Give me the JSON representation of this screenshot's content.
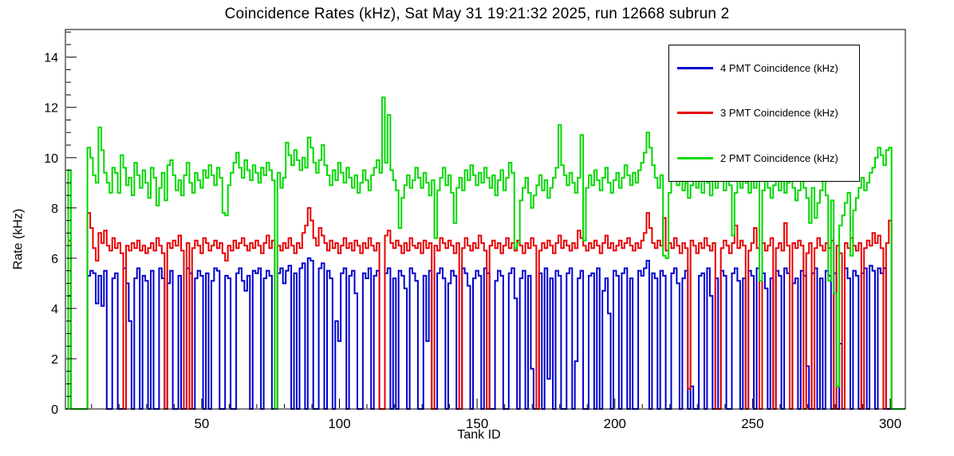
{
  "header": {
    "title": "Coincidence Rates (kHz), Sat May 31 19:21:32 2025, run 12668 subrun 2"
  },
  "chart_data": {
    "type": "step-histogram",
    "title": "Coincidence Rates (kHz), Sat May 31 19:21:32 2025, run 12668 subrun 2",
    "xlabel": "Tank ID",
    "ylabel": "Rate (kHz)",
    "xlim": [
      0.5,
      305.5
    ],
    "ylim": [
      0,
      15.1
    ],
    "x_major_ticks": [
      50,
      100,
      150,
      200,
      250,
      300
    ],
    "x_minor_step": 10,
    "y_major_ticks": [
      0,
      2,
      4,
      6,
      8,
      10,
      12,
      14
    ],
    "y_minor_step": 0.5,
    "grid": false,
    "frame_color": "#000000",
    "background": "#ffffff",
    "legend": {
      "position": "top-right",
      "border": "#000000"
    },
    "bin_start_tank_id": 1,
    "series": [
      {
        "key": "4pmt",
        "name": "4 PMT Coincidence (kHz)",
        "color": "#0000cc",
        "values": [
          0,
          4.5,
          0,
          0,
          0,
          0,
          0,
          0,
          5.3,
          5.5,
          5.4,
          4.2,
          5.3,
          4.1,
          5.5,
          0,
          0,
          5.2,
          5.4,
          0,
          0,
          5.6,
          5.0,
          3.5,
          0,
          5.2,
          5.6,
          0,
          5.3,
          5.1,
          0,
          5.5,
          0,
          0,
          5.6,
          5.2,
          0,
          5.0,
          5.5,
          0,
          0,
          5.3,
          0,
          0,
          5.6,
          5.4,
          0,
          5.2,
          5.5,
          5.3,
          0,
          5.4,
          0,
          5.1,
          5.6,
          5.5,
          0,
          0,
          5.3,
          5.2,
          0,
          0,
          5.4,
          5.6,
          5.1,
          4.7,
          5.3,
          0,
          5.5,
          5.4,
          5.6,
          0,
          5.2,
          5.5,
          5.3,
          0,
          0,
          5.4,
          5.6,
          5.0,
          5.5,
          5.7,
          0,
          5.4,
          0,
          5.6,
          5.8,
          0,
          6.0,
          5.9,
          0,
          0,
          5.6,
          5.8,
          0,
          5.5,
          5.2,
          0,
          3.5,
          2.7,
          5.4,
          5.6,
          0,
          5.3,
          5.5,
          4.6,
          0,
          0,
          5.4,
          5.2,
          5.6,
          0,
          5.3,
          5.5,
          0,
          0,
          5.4,
          5.6,
          0,
          5.2,
          0,
          5.5,
          5.3,
          4.8,
          0,
          5.6,
          5.4,
          5.1,
          0,
          0,
          5.3,
          2.7,
          5.5,
          0,
          0,
          5.4,
          5.6,
          5.2,
          0,
          5.0,
          5.5,
          5.3,
          0,
          0,
          5.6,
          5.4,
          4.9,
          0,
          5.2,
          5.5,
          5.3,
          0,
          5.6,
          5.4,
          0,
          0,
          5.1,
          5.5,
          5.3,
          0,
          0,
          5.4,
          5.6,
          4.4,
          0,
          5.2,
          5.5,
          0,
          5.3,
          1.6,
          0,
          0,
          5.4,
          0,
          5.6,
          1.2,
          5.2,
          0,
          5.5,
          5.3,
          0,
          0,
          5.4,
          5.6,
          0,
          1.9,
          5.2,
          5.5,
          0,
          0,
          5.3,
          5.4,
          0,
          5.6,
          0,
          4.7,
          5.2,
          3.8,
          0,
          5.5,
          5.3,
          0,
          5.4,
          5.6,
          0,
          5.2,
          0,
          0,
          5.5,
          5.3,
          5.6,
          5.9,
          0,
          5.4,
          5.2,
          0,
          5.5,
          5.3,
          0,
          0,
          5.4,
          5.6,
          5.0,
          0,
          5.2,
          5.5,
          0,
          0.9,
          0,
          0,
          5.3,
          5.4,
          0,
          5.6,
          4.5,
          0,
          5.2,
          0,
          5.5,
          5.3,
          0,
          0,
          5.4,
          5.6,
          5.1,
          0,
          5.2,
          0,
          5.5,
          5.3,
          0,
          5.6,
          0,
          5.4,
          4.8,
          0,
          5.2,
          0,
          5.5,
          5.3,
          0,
          5.6,
          5.4,
          0,
          5.0,
          5.2,
          0,
          5.5,
          5.3,
          1.7,
          0,
          5.4,
          5.6,
          0,
          5.2,
          0,
          5.5,
          5.3,
          0,
          5.4,
          0,
          2.6,
          0,
          5.6,
          5.2,
          0,
          5.5,
          5.3,
          0,
          5.4,
          5.6,
          0,
          5.7,
          5.5,
          0,
          5.6,
          5.4,
          5.6,
          0,
          0,
          0,
          0,
          0,
          0,
          0
        ]
      },
      {
        "key": "3pmt",
        "name": "3 PMT Coincidence (kHz)",
        "color": "#e60000",
        "values": [
          0,
          6.7,
          0,
          0,
          0,
          0,
          0,
          0,
          7.8,
          7.2,
          6.4,
          5.9,
          7.0,
          6.6,
          7.1,
          6.5,
          6.3,
          6.8,
          6.4,
          6.6,
          6.2,
          0,
          6.5,
          6.3,
          6.6,
          6.4,
          6.7,
          6.3,
          6.5,
          6.2,
          6.4,
          6.6,
          6.3,
          6.8,
          6.5,
          6.2,
          0,
          6.6,
          6.4,
          6.7,
          6.5,
          6.9,
          6.3,
          0,
          6.6,
          0,
          6.4,
          6.7,
          6.5,
          6.2,
          6.8,
          6.6,
          6.3,
          6.5,
          6.7,
          6.4,
          6.6,
          6.2,
          5.9,
          6.5,
          6.3,
          6.7,
          6.4,
          6.6,
          6.8,
          6.5,
          6.3,
          6.6,
          6.4,
          6.7,
          6.5,
          6.2,
          6.6,
          6.9,
          6.4,
          6.7,
          0,
          6.5,
          6.3,
          6.6,
          6.4,
          6.8,
          6.5,
          6.2,
          6.6,
          6.4,
          7.0,
          7.3,
          8.0,
          7.5,
          6.8,
          6.5,
          7.2,
          6.9,
          6.6,
          6.3,
          6.7,
          6.4,
          6.6,
          6.2,
          6.5,
          6.8,
          6.4,
          6.6,
          6.3,
          6.7,
          6.5,
          6.2,
          6.6,
          6.4,
          6.8,
          6.5,
          6.3,
          6.6,
          0,
          0,
          6.9,
          7.1,
          6.6,
          6.4,
          6.7,
          6.5,
          6.2,
          6.6,
          6.3,
          6.8,
          6.5,
          6.4,
          6.6,
          6.2,
          6.7,
          6.4,
          6.6,
          0,
          6.5,
          6.3,
          6.8,
          6.6,
          6.4,
          6.7,
          6.5,
          6.2,
          6.6,
          0,
          6.4,
          6.8,
          6.5,
          6.3,
          6.6,
          6.4,
          6.9,
          6.6,
          6.3,
          0,
          6.5,
          6.7,
          6.4,
          6.6,
          6.2,
          6.5,
          6.8,
          6.4,
          6.6,
          6.3,
          6.7,
          6.5,
          6.2,
          6.6,
          6.4,
          6.8,
          6.5,
          0,
          6.3,
          6.6,
          6.4,
          6.7,
          6.5,
          6.2,
          6.6,
          6.9,
          6.4,
          6.7,
          6.5,
          6.3,
          6.6,
          6.4,
          7.1,
          6.8,
          6.5,
          6.3,
          6.6,
          6.4,
          6.7,
          6.5,
          6.2,
          6.6,
          6.9,
          6.4,
          6.6,
          6.3,
          6.5,
          6.7,
          6.4,
          6.6,
          6.8,
          6.5,
          6.3,
          6.6,
          6.4,
          6.7,
          7.0,
          7.8,
          7.2,
          6.6,
          6.4,
          6.7,
          6.5,
          7.6,
          6.3,
          6.6,
          6.4,
          6.8,
          6.5,
          6.2,
          6.6,
          6.4,
          0.8,
          6.7,
          6.5,
          6.2,
          6.6,
          6.4,
          6.8,
          6.5,
          6.3,
          6.6,
          0,
          0,
          6.4,
          6.7,
          6.5,
          6.2,
          6.6,
          7.3,
          6.4,
          6.7,
          6.5,
          0,
          6.3,
          6.6,
          7.2,
          6.4,
          0,
          6.6,
          6.3,
          6.5,
          6.8,
          0,
          6.4,
          6.6,
          6.3,
          7.4,
          6.5,
          0,
          6.6,
          6.4,
          6.7,
          6.5,
          0,
          6.2,
          6.6,
          0,
          6.4,
          6.8,
          6.5,
          6.3,
          6.6,
          6.4,
          6.7,
          0,
          6.5,
          6.2,
          0,
          6.6,
          6.4,
          6.8,
          6.5,
          6.3,
          6.6,
          0,
          6.4,
          6.7,
          6.5,
          7.0,
          6.6,
          6.9,
          6.4,
          0,
          6.6,
          7.5,
          0,
          0,
          0,
          0,
          0
        ]
      },
      {
        "key": "2pmt",
        "name": "2 PMT Coincidence (kHz)",
        "color": "#00d900",
        "values": [
          0,
          9.5,
          0,
          0,
          0,
          0,
          0,
          0,
          10.4,
          10.0,
          9.3,
          9.0,
          11.2,
          10.3,
          9.4,
          9.0,
          8.6,
          9.6,
          9.4,
          8.6,
          10.1,
          9.6,
          8.9,
          9.2,
          8.5,
          9.8,
          9.3,
          8.8,
          9.5,
          9.0,
          8.4,
          9.6,
          9.2,
          8.1,
          8.8,
          9.4,
          8.3,
          9.7,
          9.9,
          9.3,
          8.7,
          9.1,
          8.5,
          9.3,
          9.8,
          9.0,
          8.6,
          9.4,
          9.1,
          8.8,
          9.5,
          9.2,
          9.7,
          9.3,
          8.9,
          9.6,
          9.2,
          7.8,
          7.7,
          8.9,
          9.4,
          9.8,
          10.2,
          9.6,
          9.2,
          9.9,
          9.5,
          9.1,
          9.7,
          9.4,
          9.0,
          9.6,
          9.3,
          9.8,
          9.5,
          9.1,
          0,
          9.4,
          8.8,
          9.2,
          10.6,
          10.1,
          9.7,
          10.3,
          9.9,
          9.5,
          10.0,
          9.6,
          10.8,
          10.4,
          9.8,
          9.4,
          9.9,
          10.5,
          9.7,
          9.3,
          8.9,
          9.5,
          9.1,
          9.8,
          9.4,
          9.0,
          9.6,
          9.2,
          8.8,
          9.3,
          8.6,
          9.0,
          9.5,
          9.1,
          8.7,
          9.3,
          9.6,
          9.9,
          9.4,
          12.4,
          9.8,
          11.7,
          9.5,
          9.1,
          8.7,
          7.2,
          8.4,
          8.9,
          9.3,
          8.8,
          9.1,
          9.6,
          9.2,
          8.8,
          9.4,
          9.0,
          8.5,
          9.1,
          6.8,
          8.7,
          9.2,
          9.6,
          8.9,
          9.3,
          8.6,
          7.4,
          8.8,
          9.2,
          8.7,
          9.5,
          9.1,
          9.7,
          9.3,
          8.9,
          9.4,
          9.0,
          9.6,
          9.2,
          8.8,
          9.3,
          8.5,
          9.1,
          9.5,
          8.7,
          9.2,
          9.8,
          9.4,
          6.4,
          6.6,
          8.3,
          8.8,
          9.2,
          8.6,
          8.0,
          8.5,
          8.9,
          9.3,
          8.7,
          9.1,
          8.4,
          8.8,
          9.2,
          9.6,
          11.3,
          9.7,
          9.3,
          8.9,
          9.4,
          9.0,
          8.6,
          9.2,
          10.9,
          6.7,
          8.8,
          9.3,
          8.9,
          9.5,
          9.1,
          8.7,
          9.2,
          9.6,
          9.0,
          8.6,
          9.1,
          9.4,
          8.8,
          9.2,
          9.7,
          9.3,
          8.9,
          9.4,
          9.0,
          9.5,
          9.8,
          10.2,
          11.0,
          10.4,
          9.7,
          9.2,
          8.8,
          9.3,
          6.1,
          6.0,
          8.6,
          9.1,
          9.5,
          8.9,
          9.2,
          8.7,
          9.0,
          8.4,
          8.9,
          9.3,
          8.8,
          9.1,
          8.6,
          9.4,
          9.0,
          8.5,
          9.2,
          8.8,
          9.5,
          9.1,
          8.7,
          9.3,
          8.9,
          6.9,
          8.6,
          9.2,
          8.8,
          9.4,
          9.0,
          8.6,
          9.1,
          8.8,
          9.3,
          5.1,
          8.7,
          9.2,
          8.8,
          8.4,
          8.9,
          9.3,
          8.7,
          9.1,
          8.6,
          9.0,
          9.4,
          8.8,
          8.3,
          8.7,
          9.2,
          8.8,
          8.4,
          7.4,
          8.8,
          7.6,
          8.2,
          8.7,
          9.1,
          8.5,
          5.1,
          8.3,
          4.6,
          0.9,
          7.3,
          7.7,
          8.2,
          8.6,
          6.1,
          7.9,
          8.4,
          8.8,
          9.2,
          8.7,
          9.0,
          9.4,
          9.6,
          10.0,
          10.4,
          10.1,
          9.7,
          10.3,
          10.4,
          0,
          0,
          0,
          0,
          0
        ]
      }
    ]
  }
}
